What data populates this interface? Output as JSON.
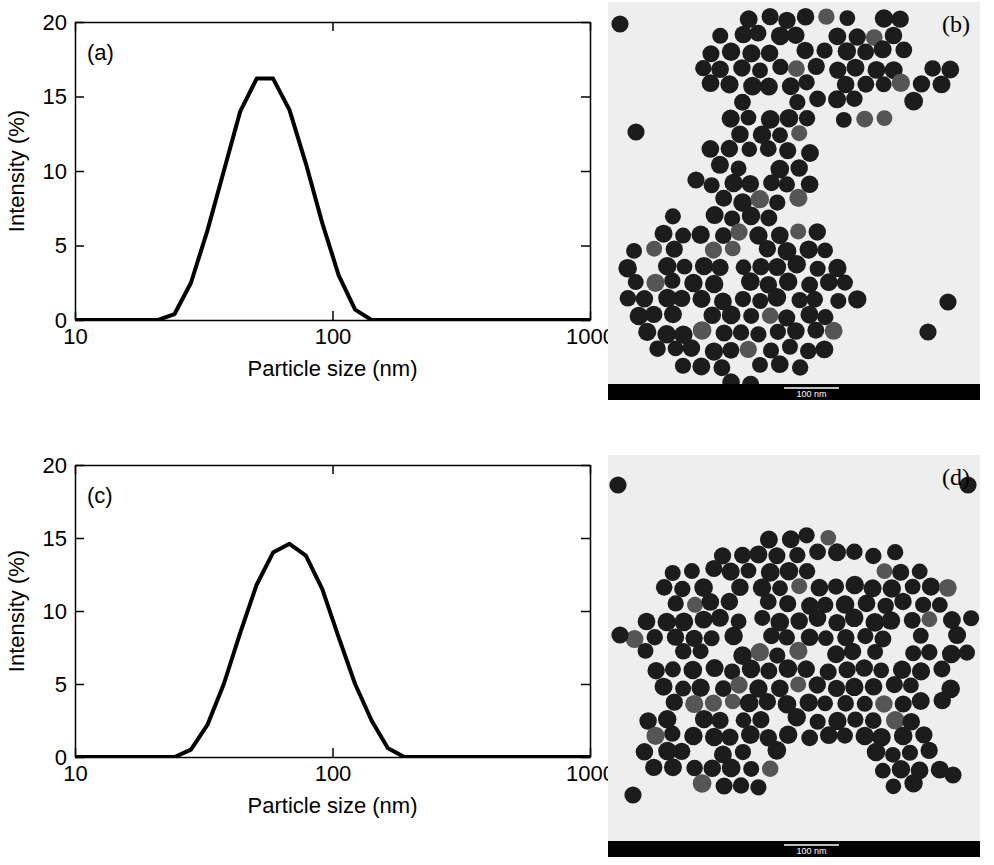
{
  "chart_data": [
    {
      "type": "line",
      "panel_label": "(a)",
      "x_label": "Particle size (nm)",
      "y_label": "Intensity (%)",
      "color": "#000000",
      "log": "x",
      "x": [
        10,
        21.04,
        24.36,
        28.21,
        32.67,
        37.84,
        43.82,
        50.75,
        58.77,
        68.06,
        78.82,
        91.28,
        105.7,
        122.4,
        141.8,
        1000
      ],
      "values": [
        0,
        0,
        0.4,
        2.5,
        6,
        10,
        14,
        16.2,
        16.2,
        14.1,
        10.5,
        6.5,
        3,
        0.7,
        0,
        0
      ],
      "xlim": [
        10,
        1000
      ],
      "xticks": [
        10,
        100,
        1000
      ],
      "ylim": [
        0,
        20
      ],
      "yticks": [
        0,
        5,
        10,
        15,
        20
      ]
    },
    {
      "type": "line",
      "panel_label": "(c)",
      "x_label": "Particle size (nm)",
      "y_label": "Intensity (%)",
      "color": "#000000",
      "log": "x",
      "x": [
        10,
        24.36,
        28.21,
        32.67,
        37.84,
        43.82,
        50.75,
        58.77,
        68.06,
        78.82,
        91.28,
        105.7,
        122.4,
        141.8,
        164.2,
        190.1,
        1000
      ],
      "values": [
        0,
        0,
        0.5,
        2.2,
        5,
        8.5,
        11.8,
        14,
        14.6,
        13.8,
        11.5,
        8.2,
        5,
        2.5,
        0.6,
        0,
        0
      ],
      "xlim": [
        10,
        1000
      ],
      "xticks": [
        10,
        100,
        1000
      ],
      "ylim": [
        0,
        20
      ],
      "yticks": [
        0,
        5,
        10,
        15,
        20
      ]
    }
  ],
  "images": [
    {
      "label": "(b)",
      "scale_bar": "100 nm"
    },
    {
      "label": "(d)",
      "scale_bar": "100 nm"
    }
  ]
}
